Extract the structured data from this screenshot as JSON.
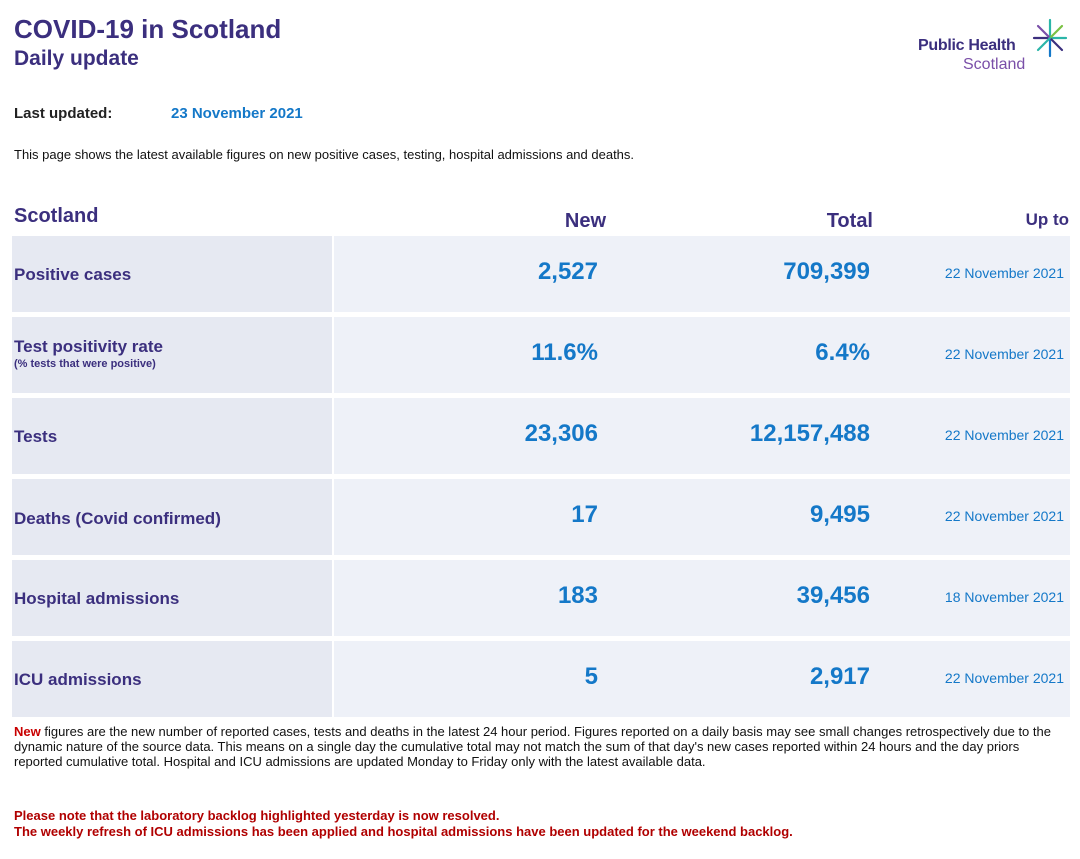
{
  "header": {
    "title": "COVID-19 in Scotland",
    "subtitle": "Daily update",
    "logo_line1": "Public Health",
    "logo_line2": "Scotland"
  },
  "updated": {
    "label": "Last updated:",
    "date": "23 November 2021"
  },
  "intro": "This page shows the latest available figures on new positive cases, testing, hospital admissions and deaths.",
  "table": {
    "headers": {
      "region": "Scotland",
      "new": "New",
      "total": "Total",
      "upto": "Up to"
    },
    "rows": [
      {
        "label": "Positive cases",
        "sublabel": "",
        "new": "2,527",
        "total": "709,399",
        "upto": "22 November 2021"
      },
      {
        "label": "Test positivity rate",
        "sublabel": "(% tests that were positive)",
        "new": "11.6%",
        "total": "6.4%",
        "upto": "22 November 2021"
      },
      {
        "label": "Tests",
        "sublabel": "",
        "new": "23,306",
        "total": "12,157,488",
        "upto": "22 November 2021"
      },
      {
        "label": "Deaths (Covid confirmed)",
        "sublabel": "",
        "new": "17",
        "total": "9,495",
        "upto": "22 November 2021"
      },
      {
        "label": "Hospital admissions",
        "sublabel": "",
        "new": "183",
        "total": "39,456",
        "upto": "18 November 2021"
      },
      {
        "label": "ICU admissions",
        "sublabel": "",
        "new": "5",
        "total": "2,917",
        "upto": "22 November 2021"
      }
    ]
  },
  "footnote": {
    "new_word": "New",
    "text": " figures are the new number of reported cases, tests and deaths in the latest 24 hour period. Figures reported on a daily basis may see small changes retrospectively due to the dynamic nature of the source data. This means on a single day the cumulative total may not match the sum of that day's new cases reported within 24 hours and the day priors reported cumulative total. Hospital and ICU admissions are updated Monday to Friday only with the latest available data."
  },
  "warnings": [
    "Please note that the laboratory backlog highlighted yesterday is now resolved.",
    "The weekly refresh of ICU admissions has been applied and hospital admissions have been updated for the weekend backlog."
  ],
  "colors": {
    "title": "#3b2f7e",
    "value": "#1478c8",
    "warning": "#b00000",
    "row_bg": "#eef1f8"
  }
}
